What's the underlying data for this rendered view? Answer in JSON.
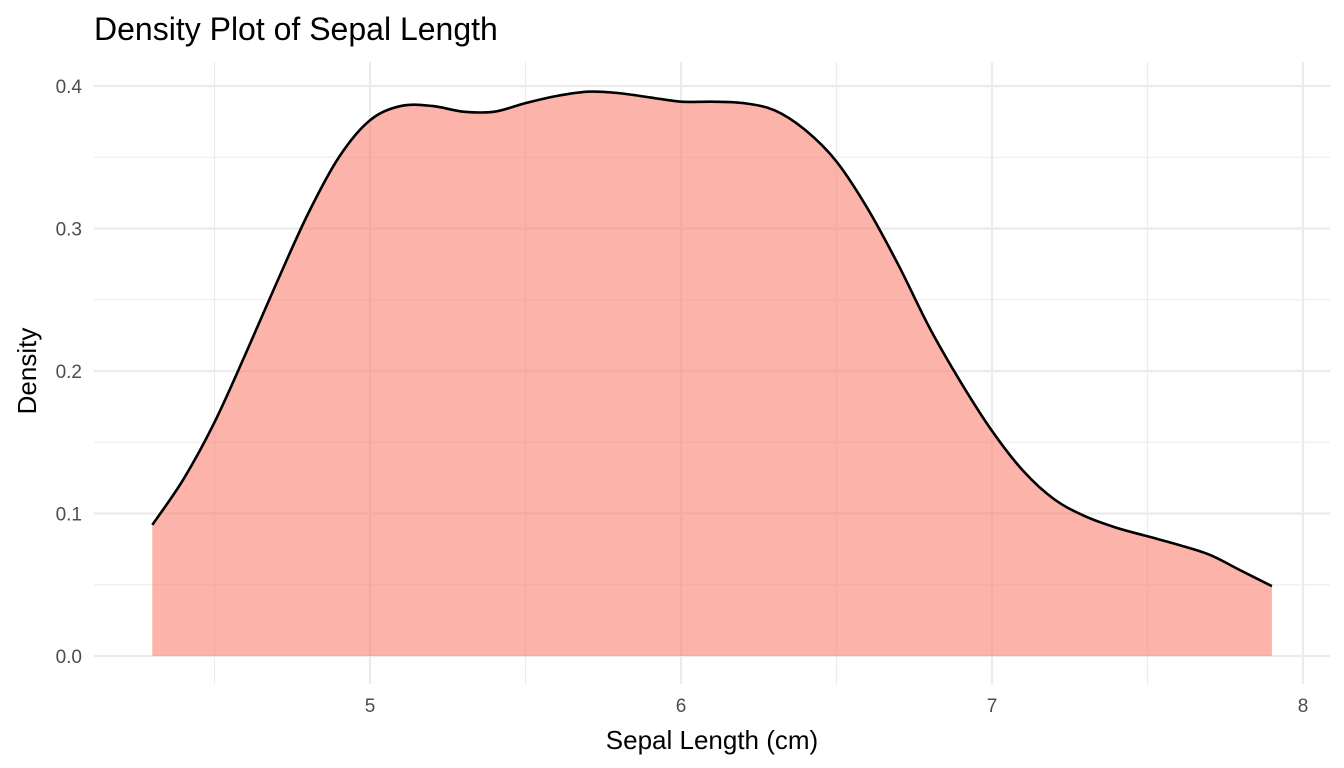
{
  "chart_data": {
    "type": "area",
    "title": "Density Plot of Sepal Length",
    "xlabel": "Sepal Length (cm)",
    "ylabel": "Density",
    "xlim": [
      4.2,
      8.0
    ],
    "ylim": [
      0,
      0.4
    ],
    "x_ticks": [
      5,
      6,
      7,
      8
    ],
    "y_ticks": [
      0.0,
      0.1,
      0.2,
      0.3,
      0.4
    ],
    "x_tick_labels": [
      "5",
      "6",
      "7",
      "8"
    ],
    "y_tick_labels": [
      "0.0",
      "0.1",
      "0.2",
      "0.3",
      "0.4"
    ],
    "grid": true,
    "legend": "none",
    "fill_color": "#fa8072",
    "fill_opacity": 0.6,
    "line_color": "#000000",
    "series": [
      {
        "x": [
          4.3,
          4.4,
          4.5,
          4.6,
          4.7,
          4.8,
          4.9,
          5.0,
          5.1,
          5.2,
          5.3,
          5.4,
          5.5,
          5.6,
          5.7,
          5.8,
          5.9,
          6.0,
          6.1,
          6.2,
          6.3,
          6.4,
          6.5,
          6.6,
          6.7,
          6.8,
          6.9,
          7.0,
          7.1,
          7.2,
          7.3,
          7.4,
          7.5,
          7.6,
          7.7,
          7.8,
          7.9
        ],
        "y": [
          0.092,
          0.124,
          0.164,
          0.212,
          0.262,
          0.31,
          0.35,
          0.376,
          0.386,
          0.386,
          0.382,
          0.382,
          0.388,
          0.393,
          0.396,
          0.395,
          0.392,
          0.389,
          0.389,
          0.388,
          0.383,
          0.369,
          0.347,
          0.314,
          0.274,
          0.23,
          0.192,
          0.158,
          0.13,
          0.11,
          0.098,
          0.09,
          0.084,
          0.078,
          0.071,
          0.06,
          0.049
        ]
      }
    ]
  }
}
